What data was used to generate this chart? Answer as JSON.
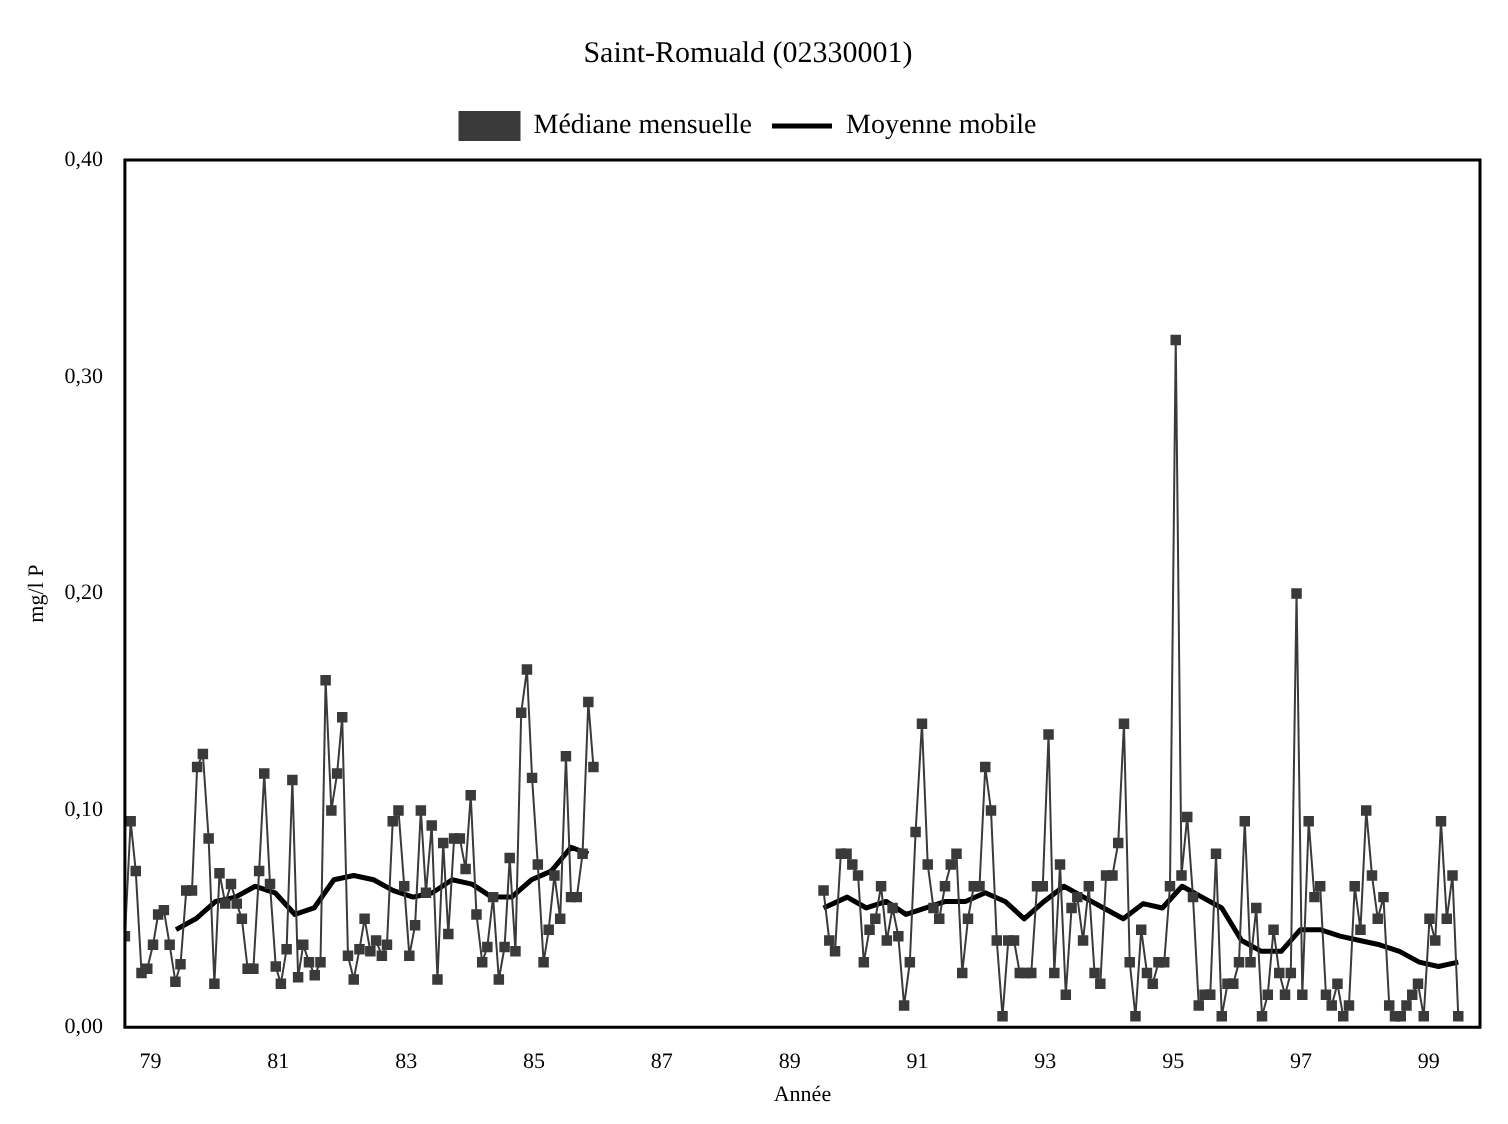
{
  "chart_data": {
    "type": "line",
    "title": "Saint-Romuald (02330001)",
    "xlabel": "Année",
    "ylabel": "mg/l P",
    "xlim": [
      78.6,
      99.8
    ],
    "xticks": [
      79,
      81,
      83,
      85,
      87,
      89,
      91,
      93,
      95,
      97,
      99
    ],
    "ylim": [
      0,
      0.4
    ],
    "yticks": [
      {
        "value": 0,
        "label": "0,00"
      },
      {
        "value": 0.1,
        "label": "0,10"
      },
      {
        "value": 0.2,
        "label": "0,20"
      },
      {
        "value": 0.3,
        "label": "0,30"
      },
      {
        "value": 0.4,
        "label": "0,40"
      }
    ],
    "grid": false,
    "legend": "top",
    "series": [
      {
        "name": "Médiane mensuelle",
        "color": "#3a3a3a",
        "marker": "square",
        "line_style": "solid",
        "x": [
          78.6,
          78.69,
          78.77,
          78.86,
          78.95,
          79.04,
          79.12,
          79.21,
          79.3,
          79.39,
          79.47,
          79.56,
          79.65,
          79.73,
          79.82,
          79.91,
          80.0,
          80.08,
          80.17,
          80.26,
          80.35,
          80.43,
          80.52,
          80.61,
          80.7,
          80.78,
          80.87,
          80.96,
          81.04,
          81.13,
          81.22,
          81.31,
          81.39,
          81.48,
          81.57,
          81.66,
          81.74,
          81.83,
          81.92,
          82.0,
          82.09,
          82.18,
          82.27,
          82.35,
          82.44,
          82.53,
          82.62,
          82.7,
          82.79,
          82.88,
          82.97,
          83.05,
          83.14,
          83.23,
          83.31,
          83.4,
          83.49,
          83.58,
          83.66,
          83.75,
          83.84,
          83.93,
          84.01,
          84.1,
          84.19,
          84.27,
          84.36,
          84.45,
          84.54,
          84.62,
          84.71,
          84.8,
          84.89,
          84.97,
          85.06,
          85.15,
          85.23,
          85.32,
          85.41,
          85.5,
          85.58,
          85.67,
          85.76,
          85.85,
          85.93,
          88,
          89.53,
          89.62,
          89.71,
          89.8,
          89.89,
          89.98,
          90.07,
          90.16,
          90.25,
          90.34,
          90.43,
          90.52,
          90.61,
          90.7,
          90.79,
          90.88,
          90.97,
          91.07,
          91.16,
          91.25,
          91.34,
          91.43,
          91.52,
          91.61,
          91.7,
          91.79,
          91.88,
          91.97,
          92.06,
          92.15,
          92.24,
          92.33,
          92.42,
          92.51,
          92.6,
          92.69,
          92.78,
          92.87,
          92.96,
          93.05,
          93.14,
          93.23,
          93.32,
          93.41,
          93.5,
          93.59,
          93.68,
          93.77,
          93.86,
          93.95,
          94.05,
          94.14,
          94.23,
          94.32,
          94.41,
          94.5,
          94.59,
          94.68,
          94.77,
          94.86,
          94.95,
          95.04,
          95.13,
          95.22,
          95.31,
          95.4,
          95.49,
          95.58,
          95.67,
          95.76,
          95.85,
          95.94,
          96.03,
          96.12,
          96.21,
          96.3,
          96.39,
          96.48,
          96.57,
          96.66,
          96.75,
          96.84,
          96.93,
          97.02,
          97.12,
          97.21,
          97.3,
          97.39,
          97.48,
          97.57,
          97.66,
          97.75,
          97.84,
          97.93,
          98.02,
          98.11,
          98.2,
          98.29,
          98.38,
          98.47,
          98.56,
          98.65,
          98.74,
          98.83,
          98.92,
          99.01,
          99.1,
          99.19,
          99.28,
          99.37,
          99.46
        ],
        "values": [
          0.042,
          0.095,
          0.072,
          0.025,
          0.027,
          0.038,
          0.052,
          0.054,
          0.038,
          0.021,
          0.029,
          0.063,
          0.063,
          0.12,
          0.126,
          0.087,
          0.02,
          0.071,
          0.057,
          0.066,
          0.057,
          0.05,
          0.027,
          0.027,
          0.072,
          0.117,
          0.066,
          0.028,
          0.02,
          0.036,
          0.114,
          0.023,
          0.038,
          0.03,
          0.024,
          0.03,
          0.16,
          0.1,
          0.117,
          0.143,
          0.033,
          0.022,
          0.036,
          0.05,
          0.035,
          0.04,
          0.033,
          0.038,
          0.095,
          0.1,
          0.065,
          0.033,
          0.047,
          0.1,
          0.062,
          0.093,
          0.022,
          0.085,
          0.043,
          0.087,
          0.087,
          0.073,
          0.107,
          0.052,
          0.03,
          0.037,
          0.06,
          0.022,
          0.037,
          0.078,
          0.035,
          0.145,
          0.165,
          0.115,
          0.075,
          0.03,
          0.045,
          0.07,
          0.05,
          0.125,
          0.06,
          0.06,
          0.08,
          0.15,
          0.12,
          null,
          0.063,
          0.04,
          0.035,
          0.08,
          0.08,
          0.075,
          0.07,
          0.03,
          0.045,
          0.05,
          0.065,
          0.04,
          0.055,
          0.042,
          0.01,
          0.03,
          0.09,
          0.14,
          0.075,
          0.055,
          0.05,
          0.065,
          0.075,
          0.08,
          0.025,
          0.05,
          0.065,
          0.065,
          0.12,
          0.1,
          0.04,
          0.005,
          0.04,
          0.04,
          0.025,
          0.025,
          0.025,
          0.065,
          0.065,
          0.135,
          0.025,
          0.075,
          0.015,
          0.055,
          0.06,
          0.04,
          0.065,
          0.025,
          0.02,
          0.07,
          0.07,
          0.085,
          0.14,
          0.03,
          0.005,
          0.045,
          0.025,
          0.02,
          0.03,
          0.03,
          0.065,
          0.317,
          0.07,
          0.097,
          0.06,
          0.01,
          0.015,
          0.015,
          0.08,
          0.005,
          0.02,
          0.02,
          0.03,
          0.095,
          0.03,
          0.055,
          0.005,
          0.015,
          0.045,
          0.025,
          0.015,
          0.025,
          0.2,
          0.015,
          0.095,
          0.06,
          0.065,
          0.015,
          0.01,
          0.02,
          0.005,
          0.01,
          0.065,
          0.045,
          0.1,
          0.07,
          0.05,
          0.06,
          0.01,
          0.005,
          0.005,
          0.01,
          0.015,
          0.02,
          0.005,
          0.05,
          0.04,
          0.095,
          0.05,
          0.07,
          0.005
        ]
      },
      {
        "name": "Moyenne mobile",
        "color": "#000000",
        "marker": "none",
        "line_style": "solid",
        "x": [
          79.4,
          79.71,
          80.02,
          80.33,
          80.64,
          80.95,
          81.26,
          81.56,
          81.87,
          82.18,
          82.49,
          82.8,
          83.11,
          83.41,
          83.72,
          84.03,
          84.34,
          84.65,
          84.96,
          85.27,
          85.58,
          85.85,
          88,
          89.53,
          89.9,
          90.2,
          90.51,
          90.82,
          91.13,
          91.44,
          91.75,
          92.06,
          92.37,
          92.67,
          92.98,
          93.29,
          93.6,
          93.91,
          94.22,
          94.53,
          94.83,
          95.14,
          95.45,
          95.76,
          96.07,
          96.38,
          96.69,
          96.99,
          97.3,
          97.61,
          97.92,
          98.23,
          98.54,
          98.85,
          99.15,
          99.46
        ],
        "values": [
          0.045,
          0.05,
          0.058,
          0.06,
          0.065,
          0.062,
          0.052,
          0.055,
          0.068,
          0.07,
          0.068,
          0.063,
          0.06,
          0.062,
          0.068,
          0.066,
          0.06,
          0.06,
          0.068,
          0.072,
          0.083,
          0.08,
          null,
          0.055,
          0.06,
          0.055,
          0.058,
          0.052,
          0.055,
          0.058,
          0.058,
          0.062,
          0.058,
          0.05,
          0.058,
          0.065,
          0.06,
          0.055,
          0.05,
          0.057,
          0.055,
          0.065,
          0.06,
          0.055,
          0.04,
          0.035,
          0.035,
          0.045,
          0.045,
          0.042,
          0.04,
          0.038,
          0.035,
          0.03,
          0.028,
          0.03
        ]
      }
    ]
  }
}
